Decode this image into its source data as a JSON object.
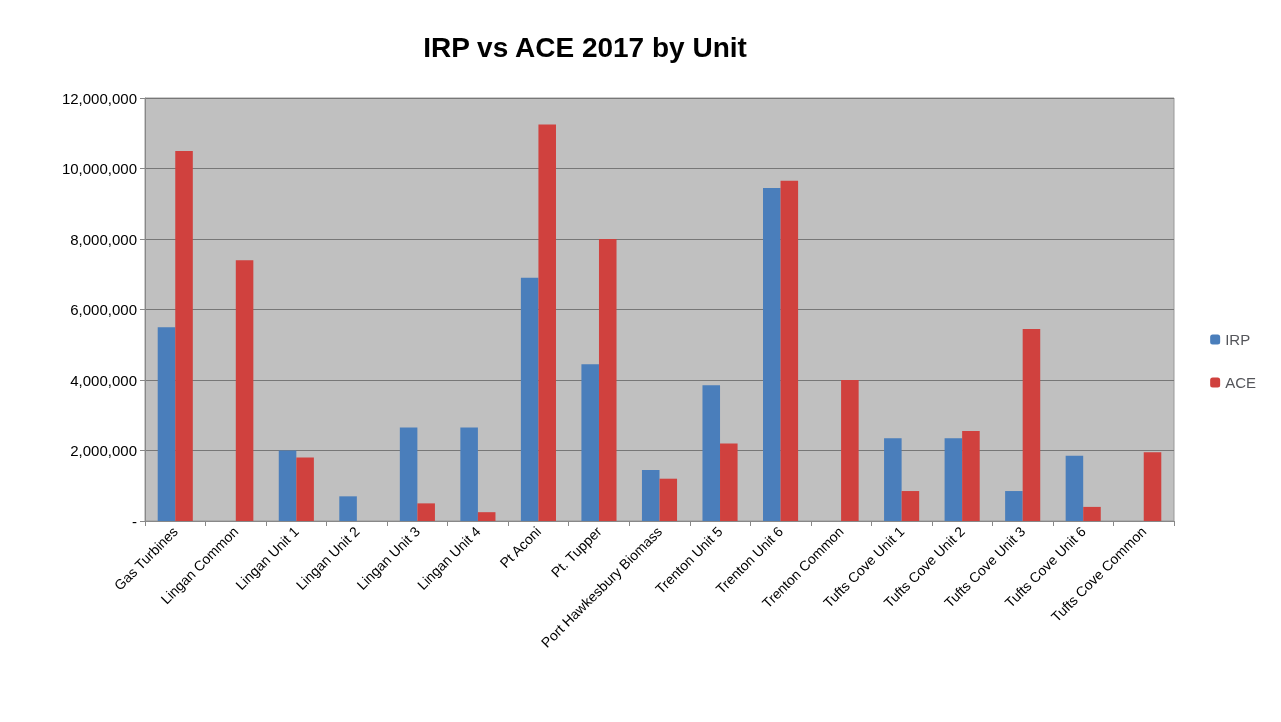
{
  "chart_data": {
    "type": "bar",
    "title": "IRP vs ACE 2017 by Unit",
    "categories": [
      "Gas Turbines",
      "Lingan Common",
      "Lingan Unit 1",
      "Lingan Unit 2",
      "Lingan Unit 3",
      "Lingan Unit 4",
      "Pt Aconi",
      "Pt. Tupper",
      "Port Hawkesbury Biomass",
      "Trenton Unit 5",
      "Trenton Unit 6",
      "Trenton Common",
      "Tufts Cove Unit 1",
      "Tufts Cove Unit 2",
      "Tufts Cove Unit 3",
      "Tufts Cove Unit 6",
      "Tufts Cove Common"
    ],
    "series": [
      {
        "name": "IRP",
        "color": "#4a7ebb",
        "values": [
          5500000,
          null,
          2000000,
          700000,
          2650000,
          2650000,
          6900000,
          4450000,
          1450000,
          3850000,
          9450000,
          null,
          2350000,
          2350000,
          850000,
          1850000,
          null
        ]
      },
      {
        "name": "ACE",
        "color": "#d0413e",
        "values": [
          10500000,
          7400000,
          1800000,
          null,
          500000,
          250000,
          11250000,
          8000000,
          1200000,
          2200000,
          9650000,
          4000000,
          850000,
          2550000,
          5450000,
          400000,
          1950000
        ]
      }
    ],
    "ylim": [
      0,
      12000000
    ],
    "yticks": [
      {
        "value": 0,
        "label": "-"
      },
      {
        "value": 2000000,
        "label": "2,000,000"
      },
      {
        "value": 4000000,
        "label": "4,000,000"
      },
      {
        "value": 6000000,
        "label": "6,000,000"
      },
      {
        "value": 8000000,
        "label": "8,000,000"
      },
      {
        "value": 10000000,
        "label": "10,000,000"
      },
      {
        "value": 12000000,
        "label": "12,000,000"
      }
    ],
    "grid": "y",
    "legend": "right"
  }
}
